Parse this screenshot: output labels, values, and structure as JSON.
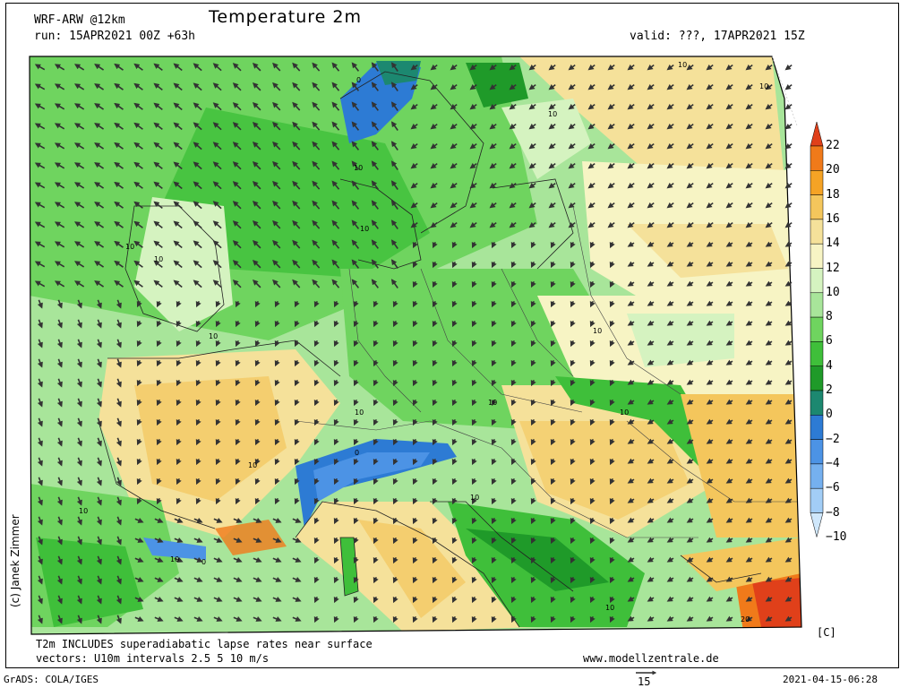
{
  "header": {
    "model": "WRF-ARW @12km",
    "title": "Temperature 2m",
    "run": "run: 15APR2021 00Z +63h",
    "valid": "valid: ???, 17APR2021 15Z"
  },
  "colorbar": {
    "unit": "[C]",
    "levels": [
      "22",
      "20",
      "18",
      "16",
      "14",
      "12",
      "10",
      "8",
      "6",
      "4",
      "2",
      "0",
      "−2",
      "−4",
      "−6",
      "−8",
      "−10"
    ],
    "colors": [
      "#e0401a",
      "#f07a1a",
      "#f5a325",
      "#f4c65c",
      "#f5e19a",
      "#f7f4c4",
      "#d5f3c0",
      "#a8e59a",
      "#6fd45f",
      "#3fbf3a",
      "#1f9a29",
      "#1c8870",
      "#2d7bd4",
      "#4c93e5",
      "#75b0ef",
      "#a2cdf6",
      "#cfe7fb"
    ]
  },
  "footer": {
    "note1": "T2m INCLUDES superadiabatic lapse rates near surface",
    "note2": "vectors: U10m intervals 2.5 5 10 m/s",
    "website": "www.modellzentrale.de",
    "grads": "GrADS: COLA/IGES",
    "ref_vector": "15",
    "timestamp": "2021-04-15-06:28"
  },
  "credit": "(c) Janek Zimmer",
  "map_labels": [
    "10",
    "10",
    "10",
    "10",
    "10",
    "10",
    "10",
    "10",
    "10",
    "10",
    "10",
    "10",
    "10",
    "10",
    "10",
    "10",
    "10",
    "20",
    "0",
    "0",
    "0"
  ]
}
